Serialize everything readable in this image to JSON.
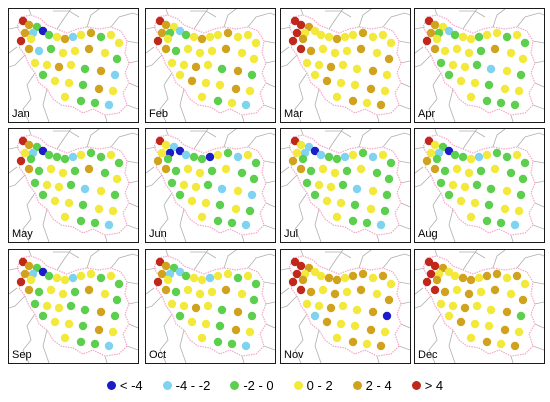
{
  "months": [
    "Jan",
    "Feb",
    "Mar",
    "Apr",
    "May",
    "Jun",
    "Jul",
    "Aug",
    "Sep",
    "Oct",
    "Nov",
    "Dec"
  ],
  "legend": [
    {
      "label": "< -4",
      "color": "#1c1cc8"
    },
    {
      "label": "-4 - -2",
      "color": "#7fd3f0"
    },
    {
      "label": "-2 - 0",
      "color": "#5ccf4f"
    },
    {
      "label": "0 - 2",
      "color": "#f2e93a"
    },
    {
      "label": "2 - 4",
      "color": "#d1a21e"
    },
    {
      "label": "> 4",
      "color": "#c0281c"
    }
  ],
  "station_classes": {
    "Jan": [
      5,
      4,
      2,
      0,
      1,
      4,
      3,
      5,
      2,
      3,
      4,
      1,
      3,
      4,
      2,
      3,
      3,
      4,
      1,
      2,
      3,
      3,
      4,
      3,
      2,
      3,
      3,
      4,
      3,
      2,
      4,
      1,
      2,
      3,
      3,
      2,
      4,
      3,
      3,
      2,
      2,
      1
    ],
    "Feb": [
      5,
      4,
      3,
      1,
      2,
      4,
      3,
      5,
      2,
      3,
      4,
      3,
      3,
      4,
      3,
      3,
      3,
      4,
      2,
      3,
      3,
      3,
      4,
      3,
      3,
      3,
      3,
      4,
      3,
      2,
      4,
      2,
      3,
      4,
      3,
      3,
      4,
      3,
      3,
      2,
      3,
      1
    ],
    "Mar": [
      5,
      5,
      4,
      3,
      3,
      5,
      4,
      5,
      3,
      3,
      4,
      3,
      3,
      4,
      3,
      3,
      3,
      5,
      4,
      3,
      3,
      3,
      4,
      3,
      4,
      3,
      3,
      4,
      3,
      3,
      4,
      3,
      3,
      4,
      3,
      3,
      4,
      3,
      3,
      4,
      3,
      4
    ],
    "Apr": [
      5,
      4,
      3,
      1,
      2,
      4,
      3,
      5,
      2,
      3,
      3,
      2,
      3,
      3,
      2,
      3,
      2,
      4,
      3,
      3,
      3,
      2,
      4,
      3,
      3,
      2,
      3,
      3,
      2,
      1,
      3,
      2,
      2,
      3,
      3,
      2,
      3,
      3,
      3,
      2,
      2,
      2
    ],
    "May": [
      5,
      4,
      2,
      0,
      1,
      3,
      2,
      5,
      2,
      2,
      2,
      1,
      3,
      2,
      2,
      3,
      2,
      4,
      2,
      3,
      3,
      2,
      4,
      2,
      3,
      2,
      3,
      3,
      2,
      1,
      3,
      2,
      2,
      3,
      3,
      2,
      3,
      3,
      3,
      2,
      2,
      1
    ],
    "Jun": [
      5,
      3,
      1,
      0,
      0,
      3,
      2,
      4,
      1,
      2,
      2,
      0,
      3,
      2,
      1,
      3,
      2,
      4,
      2,
      3,
      3,
      2,
      3,
      2,
      2,
      2,
      3,
      3,
      2,
      1,
      3,
      1,
      2,
      3,
      3,
      2,
      3,
      2,
      3,
      2,
      2,
      1
    ],
    "Jul": [
      5,
      3,
      1,
      0,
      1,
      3,
      2,
      4,
      1,
      2,
      2,
      1,
      3,
      2,
      1,
      3,
      2,
      4,
      2,
      3,
      3,
      2,
      3,
      2,
      2,
      2,
      3,
      3,
      2,
      1,
      3,
      2,
      2,
      3,
      3,
      2,
      3,
      2,
      3,
      2,
      2,
      1
    ],
    "Aug": [
      5,
      3,
      2,
      0,
      1,
      3,
      2,
      4,
      2,
      2,
      3,
      1,
      3,
      2,
      2,
      3,
      2,
      4,
      2,
      3,
      3,
      2,
      3,
      2,
      2,
      2,
      3,
      3,
      2,
      2,
      3,
      2,
      2,
      3,
      3,
      2,
      3,
      3,
      3,
      2,
      2,
      1
    ],
    "Sep": [
      5,
      4,
      2,
      0,
      1,
      4,
      3,
      5,
      2,
      3,
      3,
      1,
      3,
      3,
      2,
      3,
      2,
      4,
      2,
      3,
      3,
      2,
      4,
      3,
      2,
      2,
      3,
      3,
      2,
      2,
      4,
      2,
      2,
      3,
      3,
      2,
      4,
      3,
      3,
      2,
      2,
      1
    ],
    "Oct": [
      5,
      4,
      2,
      1,
      1,
      4,
      3,
      5,
      2,
      3,
      3,
      1,
      3,
      3,
      2,
      3,
      2,
      4,
      2,
      3,
      3,
      3,
      4,
      3,
      2,
      3,
      3,
      4,
      3,
      2,
      4,
      2,
      2,
      3,
      3,
      2,
      4,
      3,
      3,
      2,
      2,
      1
    ],
    "Nov": [
      5,
      5,
      4,
      3,
      3,
      5,
      4,
      5,
      3,
      4,
      4,
      3,
      4,
      4,
      3,
      4,
      3,
      5,
      4,
      3,
      4,
      3,
      4,
      3,
      4,
      3,
      3,
      4,
      3,
      3,
      4,
      0,
      1,
      4,
      3,
      3,
      4,
      3,
      3,
      4,
      3,
      4
    ],
    "Dec": [
      5,
      5,
      4,
      3,
      3,
      5,
      4,
      5,
      3,
      4,
      4,
      3,
      4,
      4,
      3,
      4,
      3,
      5,
      4,
      3,
      4,
      3,
      4,
      3,
      4,
      3,
      3,
      4,
      3,
      3,
      4,
      2,
      3,
      4,
      3,
      3,
      4,
      3,
      3,
      4,
      3,
      4
    ]
  }
}
